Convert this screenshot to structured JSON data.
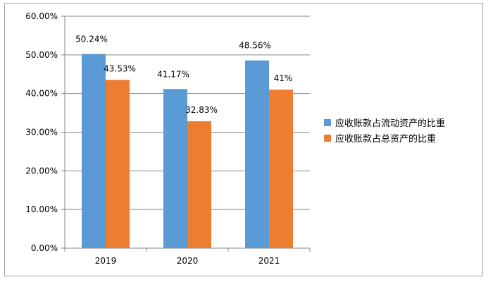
{
  "chart_data": {
    "type": "bar",
    "title": "",
    "xlabel": "",
    "ylabel": "",
    "categories": [
      "2019",
      "2020",
      "2021"
    ],
    "series": [
      {
        "name": "应收账款占流动资产的比重",
        "values": [
          50.24,
          41.17,
          48.56
        ],
        "labels": [
          "50.24%",
          "41.17%",
          "48.56%"
        ],
        "color": "#5b9bd5"
      },
      {
        "name": "应收账款占总资产的比重",
        "values": [
          43.53,
          32.83,
          41.0
        ],
        "labels": [
          "43.53%",
          "32.83%",
          "41%"
        ],
        "color": "#ed7d31"
      }
    ],
    "ylim": [
      0,
      60
    ],
    "yticks": [
      0,
      10,
      20,
      30,
      40,
      50,
      60
    ],
    "ytick_labels": [
      "0.00%",
      "10.00%",
      "20.00%",
      "30.00%",
      "40.00%",
      "50.00%",
      "60.00%"
    ],
    "grid": true,
    "legend_position": "right"
  }
}
